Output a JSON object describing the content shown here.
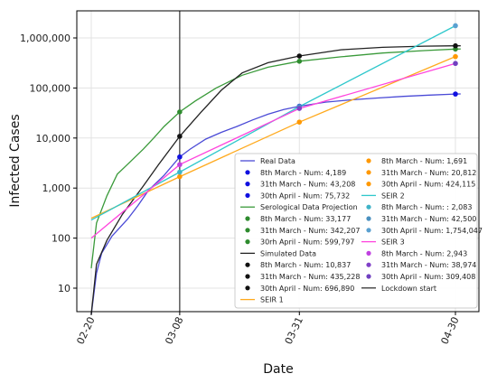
{
  "chart_data": {
    "type": "line",
    "y_scale": "log",
    "x_type": "date",
    "xlabel": "Date",
    "ylabel": "Infected Cases",
    "xlim": [
      "2020-02-20",
      "2020-04-30"
    ],
    "ylim": [
      1,
      10000000
    ],
    "grid": true,
    "legend_position": "bottom-right",
    "x_ticks": [
      {
        "date": "2020-02-20",
        "label": "02-20"
      },
      {
        "date": "2020-03-08",
        "label": "03-08"
      },
      {
        "date": "2020-03-31",
        "label": "03-31"
      },
      {
        "date": "2020-04-30",
        "label": "04-30"
      }
    ],
    "y_ticks": [
      {
        "value": 10,
        "label": "10"
      },
      {
        "value": 100,
        "label": "100"
      },
      {
        "value": 1000,
        "label": "1,000"
      },
      {
        "value": 10000,
        "label": "10,000"
      },
      {
        "value": 100000,
        "label": "100,000"
      },
      {
        "value": 1000000,
        "label": "1,000,000"
      }
    ],
    "vline": {
      "date": "2020-03-08",
      "name": "Lockdown start",
      "color": "#333333"
    },
    "series": [
      {
        "name": "Real Data",
        "color": "#4a4ad6",
        "points": [
          [
            "2020-02-20",
            3
          ],
          [
            "2020-02-21",
            20
          ],
          [
            "2020-02-22",
            50
          ],
          [
            "2020-02-24",
            110
          ],
          [
            "2020-02-27",
            240
          ],
          [
            "2020-02-29",
            450
          ],
          [
            "2020-03-02",
            900
          ],
          [
            "2020-03-05",
            1800
          ],
          [
            "2020-03-08",
            4189
          ],
          [
            "2020-03-10",
            6000
          ],
          [
            "2020-03-13",
            9500
          ],
          [
            "2020-03-16",
            13000
          ],
          [
            "2020-03-19",
            17000
          ],
          [
            "2020-03-22",
            23000
          ],
          [
            "2020-03-25",
            30000
          ],
          [
            "2020-03-28",
            37000
          ],
          [
            "2020-03-31",
            43208
          ],
          [
            "2020-04-05",
            52000
          ],
          [
            "2020-04-10",
            58000
          ],
          [
            "2020-04-15",
            63000
          ],
          [
            "2020-04-20",
            68000
          ],
          [
            "2020-04-25",
            72000
          ],
          [
            "2020-04-30",
            75732
          ],
          [
            "2020-05-01",
            76000
          ]
        ],
        "markers": [
          {
            "label": "8th  March  - Num: 4,189",
            "date": "2020-03-08",
            "value": 4189,
            "color": "#1010e0"
          },
          {
            "label": "31th March - Num: 43,208",
            "date": "2020-03-31",
            "value": 43208,
            "color": "#1010e0"
          },
          {
            "label": "30th April  - Num: 75,732",
            "date": "2020-04-30",
            "value": 75732,
            "color": "#1010e0"
          }
        ]
      },
      {
        "name": "Serological Data Projection",
        "color": "#3a9a3a",
        "points": [
          [
            "2020-02-20",
            25
          ],
          [
            "2020-02-21",
            200
          ],
          [
            "2020-02-23",
            700
          ],
          [
            "2020-02-25",
            1900
          ],
          [
            "2020-02-27",
            3000
          ],
          [
            "2020-03-01",
            6000
          ],
          [
            "2020-03-03",
            10000
          ],
          [
            "2020-03-05",
            17000
          ],
          [
            "2020-03-08",
            33177
          ],
          [
            "2020-03-11",
            55000
          ],
          [
            "2020-03-15",
            100000
          ],
          [
            "2020-03-20",
            180000
          ],
          [
            "2020-03-25",
            260000
          ],
          [
            "2020-03-31",
            342207
          ],
          [
            "2020-04-08",
            420000
          ],
          [
            "2020-04-16",
            500000
          ],
          [
            "2020-04-24",
            560000
          ],
          [
            "2020-04-30",
            599797
          ],
          [
            "2020-05-01",
            603000
          ]
        ],
        "markers": [
          {
            "label": "8th March    -  Num: 33,177",
            "date": "2020-03-08",
            "value": 33177,
            "color": "#2e8b2e"
          },
          {
            "label": "31th March  - Num: 342,207",
            "date": "2020-03-31",
            "value": 342207,
            "color": "#2e8b2e"
          },
          {
            "label": "30rh April    -  Num: 599,797",
            "date": "2020-04-30",
            "value": 599797,
            "color": "#2e8b2e"
          }
        ]
      },
      {
        "name": "Simulated Data",
        "color": "#222222",
        "points": [
          [
            "2020-02-20",
            3
          ],
          [
            "2020-02-21",
            30
          ],
          [
            "2020-02-23",
            90
          ],
          [
            "2020-02-26",
            300
          ],
          [
            "2020-03-01",
            1100
          ],
          [
            "2020-03-04",
            3000
          ],
          [
            "2020-03-08",
            10837
          ],
          [
            "2020-03-12",
            32000
          ],
          [
            "2020-03-16",
            90000
          ],
          [
            "2020-03-20",
            200000
          ],
          [
            "2020-03-25",
            320000
          ],
          [
            "2020-03-31",
            435228
          ],
          [
            "2020-04-08",
            580000
          ],
          [
            "2020-04-16",
            650000
          ],
          [
            "2020-04-24",
            685000
          ],
          [
            "2020-04-30",
            696890
          ],
          [
            "2020-05-01",
            698000
          ]
        ],
        "markers": [
          {
            "label": "8th  March  -   Num: 10,837",
            "date": "2020-03-08",
            "value": 10837,
            "color": "#111111"
          },
          {
            "label": "31th March  -   Num: 435,228",
            "date": "2020-03-31",
            "value": 435228,
            "color": "#111111"
          },
          {
            "label": "30th April   -    Num: 696,890",
            "date": "2020-04-30",
            "value": 696890,
            "color": "#111111"
          }
        ]
      },
      {
        "name": "SEIR 1",
        "color": "#ffaa1e",
        "points": [
          [
            "2020-02-20",
            250
          ],
          [
            "2020-03-08",
            1691
          ],
          [
            "2020-03-31",
            20812
          ],
          [
            "2020-04-30",
            424115
          ]
        ],
        "markers": [
          {
            "label": "8th  March - Num: 1,691",
            "date": "2020-03-08",
            "value": 1691,
            "color": "#ff9800"
          },
          {
            "label": "31th March - Num: 20,812",
            "date": "2020-03-31",
            "value": 20812,
            "color": "#ff9800"
          },
          {
            "label": "30th April - Num: 424,115",
            "date": "2020-04-30",
            "value": 424115,
            "color": "#ff9800"
          }
        ]
      },
      {
        "name": "SEIR 2",
        "color": "#30c8cc",
        "points": [
          [
            "2020-02-20",
            230
          ],
          [
            "2020-03-08",
            2083
          ],
          [
            "2020-03-31",
            42500
          ],
          [
            "2020-04-30",
            1754047
          ]
        ],
        "markers": [
          {
            "label": "8th  March - Num: : 2,083",
            "date": "2020-03-08",
            "value": 2083,
            "color": "#3fb3c7"
          },
          {
            "label": "31th March - Num: 42,500",
            "date": "2020-03-31",
            "value": 42500,
            "color": "#4a90c0"
          },
          {
            "label": "30th April - Num: 1,754,047",
            "date": "2020-04-30",
            "value": 1754047,
            "color": "#5aa0d0"
          }
        ]
      },
      {
        "name": "SEIR 3",
        "color": "#ff44dd",
        "points": [
          [
            "2020-02-20",
            100
          ],
          [
            "2020-03-08",
            2943
          ],
          [
            "2020-03-31",
            38974
          ],
          [
            "2020-04-30",
            309408
          ]
        ],
        "markers": [
          {
            "label": "8th  March -   Num: 2,943",
            "date": "2020-03-08",
            "value": 2943,
            "color": "#c040e0"
          },
          {
            "label": "31th March - Num: 38,974",
            "date": "2020-03-31",
            "value": 38974,
            "color": "#8040c8"
          },
          {
            "label": "30th April -    Num: 309,408",
            "date": "2020-04-30",
            "value": 309408,
            "color": "#7040c0"
          }
        ]
      }
    ]
  }
}
